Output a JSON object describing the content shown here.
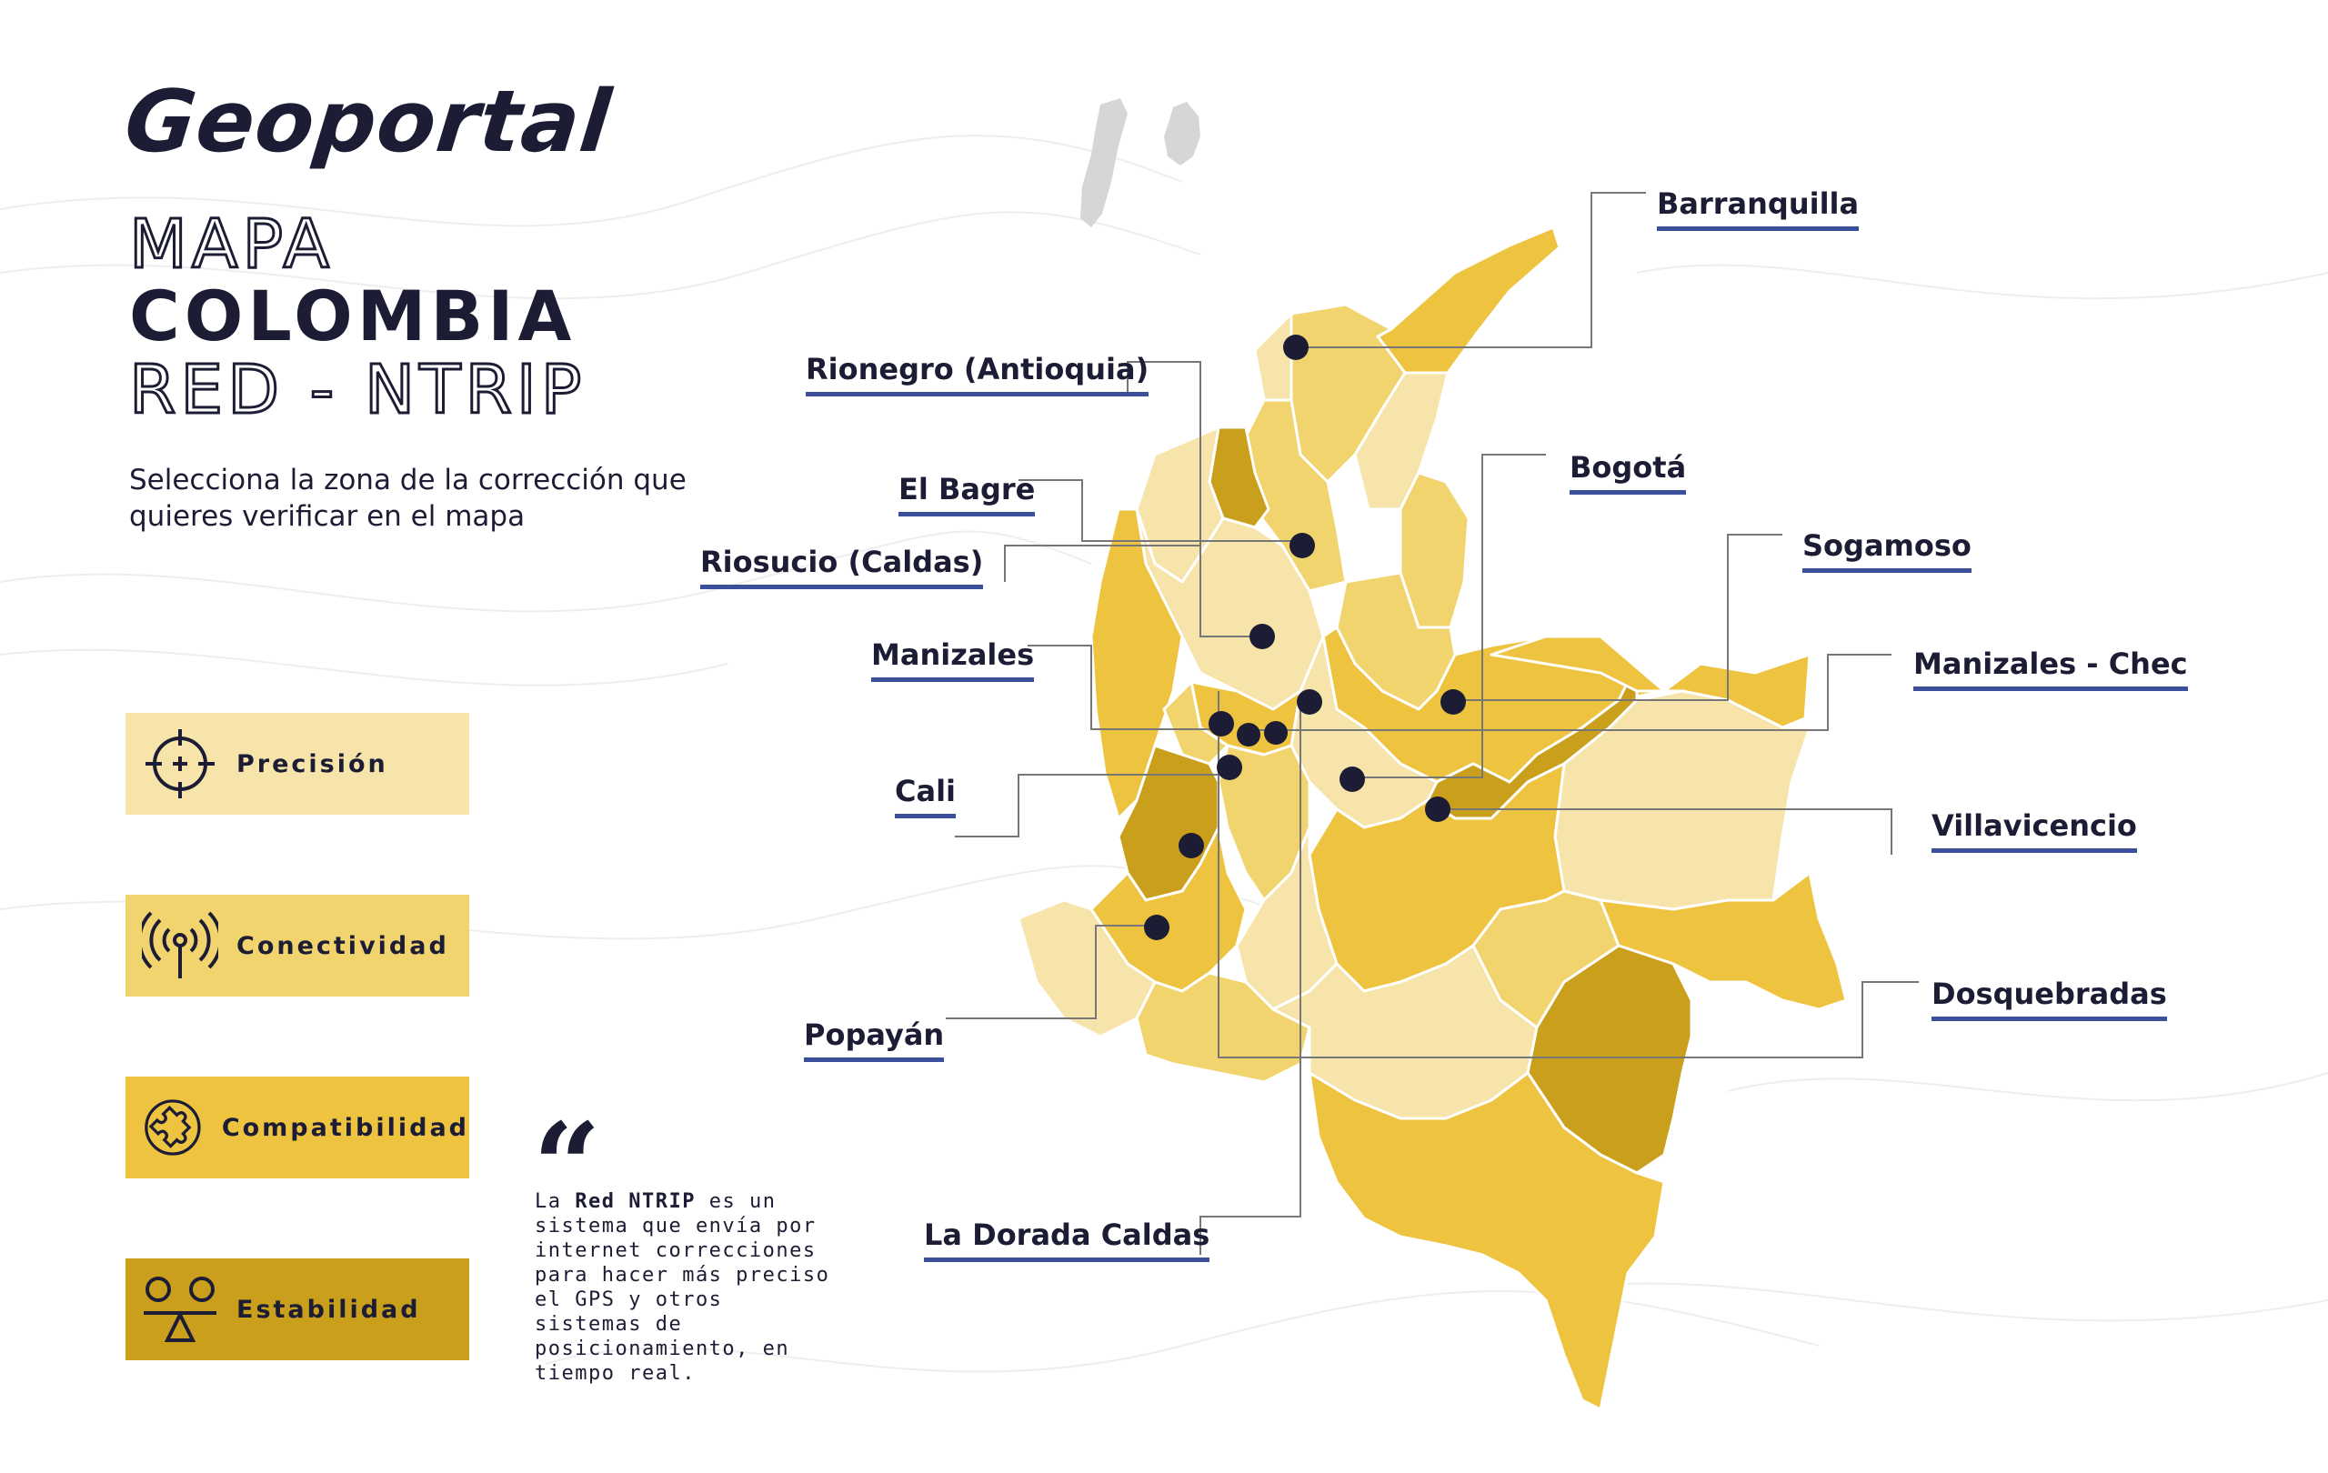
{
  "logo": "Geoportal",
  "title": {
    "line1": "MAPA",
    "line2": "COLOMBIA",
    "line3": "RED - NTRIP"
  },
  "subtitle": "Selecciona la zona de la corrección que quieres verificar en el mapa",
  "features": [
    {
      "label": "Precisión",
      "icon": "crosshair-icon",
      "color": "#f6e4aa"
    },
    {
      "label": "Conectividad",
      "icon": "antenna-signal-icon",
      "color": "#f2d46e"
    },
    {
      "label": "Compatibilidad",
      "icon": "puzzle-icon",
      "color": "#eec33f"
    },
    {
      "label": "Estabilidad",
      "icon": "balance-icon",
      "color": "#c99f1c"
    }
  ],
  "quote": {
    "prefix": "La ",
    "highlight": "Red NTRIP",
    "rest": " es un sistema que envía por internet correcciones para hacer más preciso el GPS y otros sistemas de posicionamiento, en tiempo real."
  },
  "cities": [
    {
      "name": "Barranquilla"
    },
    {
      "name": "Rionegro (Antioquia)"
    },
    {
      "name": "El Bagre"
    },
    {
      "name": "Riosucio (Caldas)"
    },
    {
      "name": "Manizales"
    },
    {
      "name": "Cali"
    },
    {
      "name": "Popayán"
    },
    {
      "name": "La Dorada Caldas"
    },
    {
      "name": "Bogotá"
    },
    {
      "name": "Sogamoso"
    },
    {
      "name": "Manizales - Chec"
    },
    {
      "name": "Villavicencio"
    },
    {
      "name": "Dosquebradas"
    }
  ],
  "colors": {
    "navy": "#1c1d35",
    "underline": "#3b4f9a",
    "map_light": "#f6e4aa",
    "map_mid": "#f2d46e",
    "map_strong": "#eec33f",
    "map_dark": "#c99f1c",
    "islands": "#d6d6d6"
  }
}
